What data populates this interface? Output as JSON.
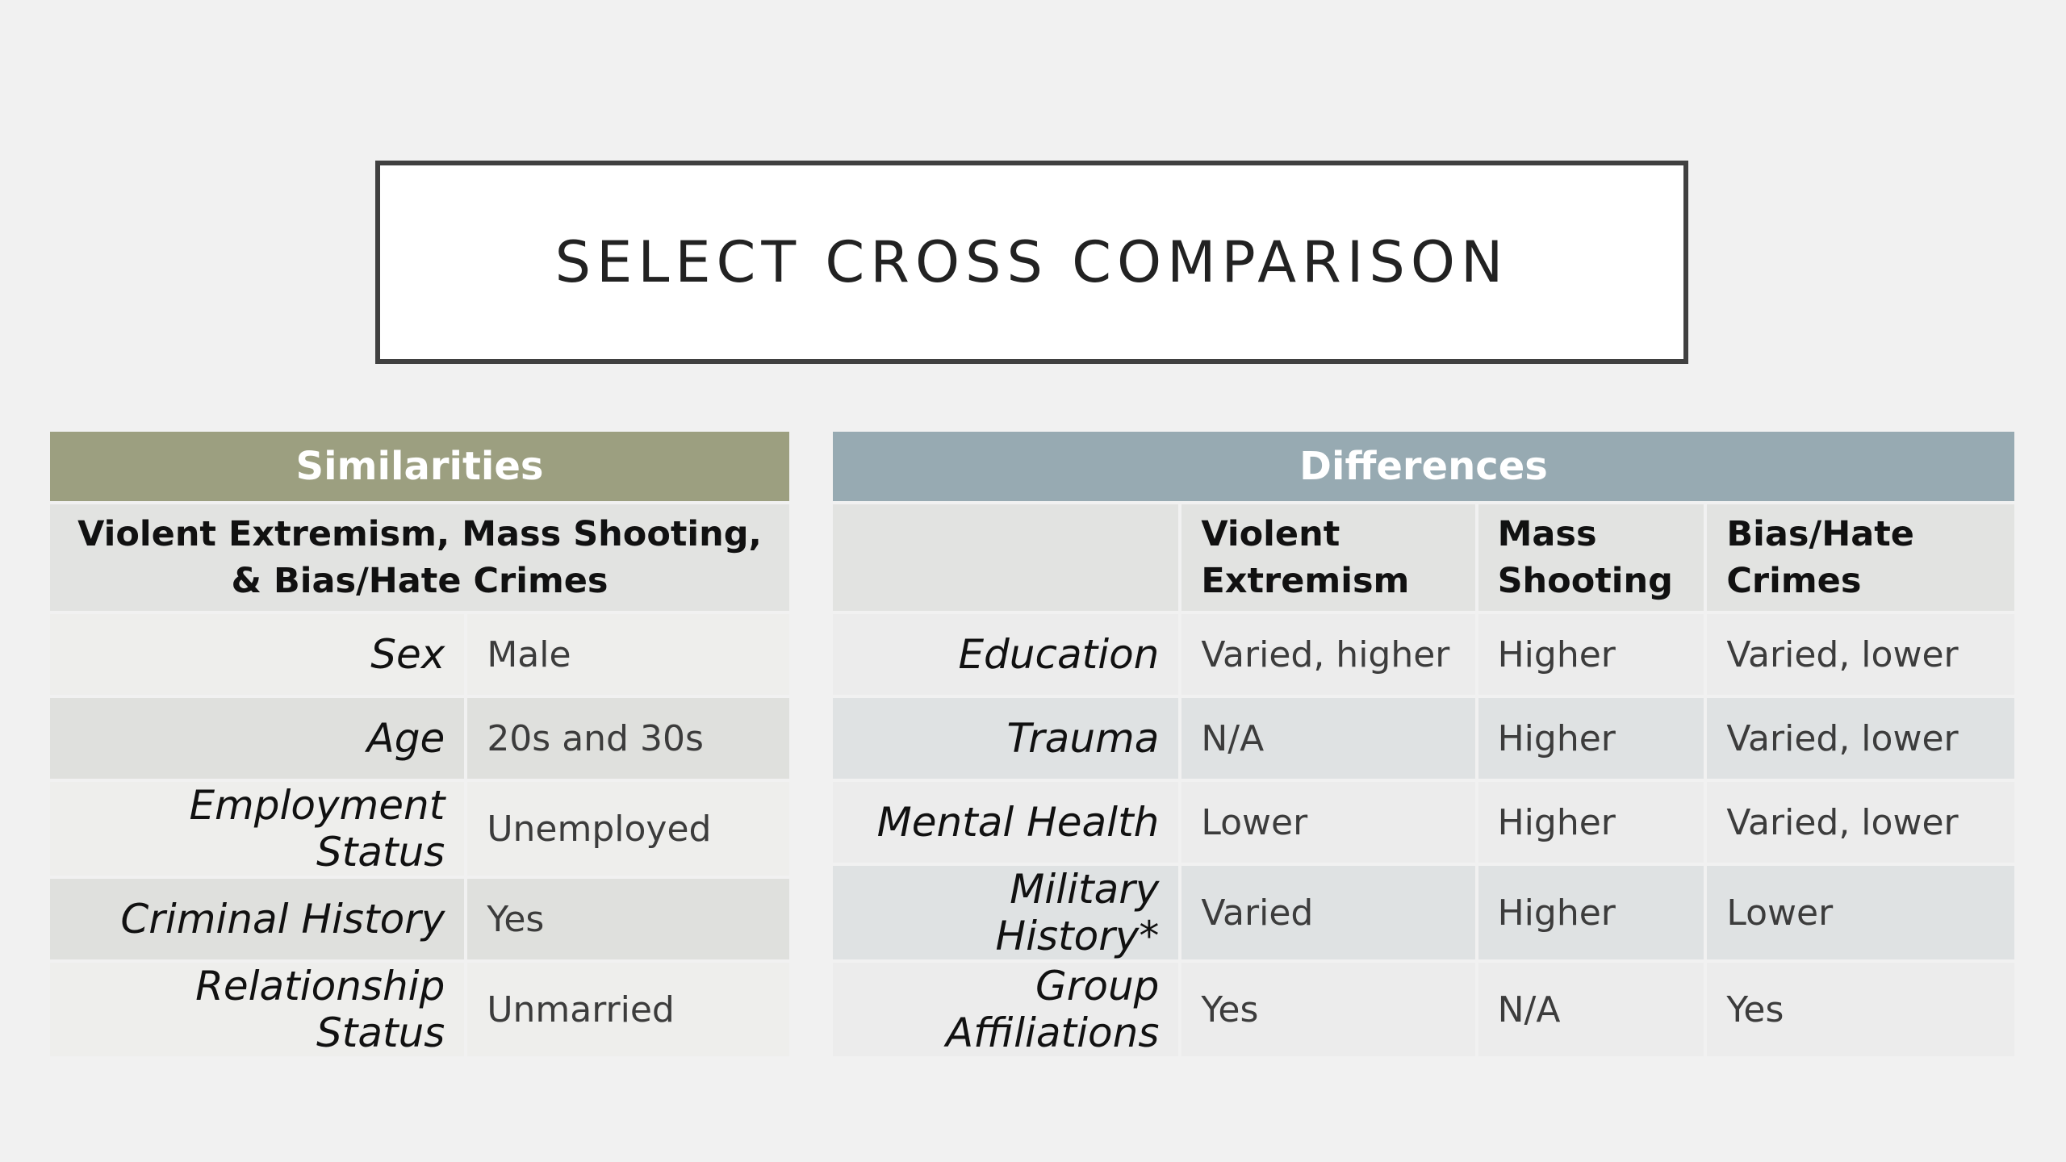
{
  "title": "SELECT CROSS COMPARISON",
  "similarities": {
    "header": "Similarities",
    "subheader": "Violent Extremism, Mass Shooting, & Bias/Hate Crimes",
    "rows": [
      {
        "label": "Sex",
        "value": "Male"
      },
      {
        "label": "Age",
        "value": "20s and 30s"
      },
      {
        "label": "Employment Status",
        "value": "Unemployed"
      },
      {
        "label": "Criminal History",
        "value": "Yes"
      },
      {
        "label": "Relationship Status",
        "value": "Unmarried"
      }
    ]
  },
  "differences": {
    "header": "Differences",
    "columns": [
      "Violent Extremism",
      "Mass Shooting",
      "Bias/Hate Crimes"
    ],
    "rows": [
      {
        "label": "Education",
        "values": [
          "Varied, higher",
          "Higher",
          "Varied, lower"
        ]
      },
      {
        "label": "Trauma",
        "values": [
          "N/A",
          "Higher",
          "Varied, lower"
        ]
      },
      {
        "label": "Mental Health",
        "values": [
          "Lower",
          "Higher",
          "Varied, lower"
        ]
      },
      {
        "label": "Military History*",
        "values": [
          "Varied",
          "Higher",
          "Lower"
        ]
      },
      {
        "label": "Group Affiliations",
        "values": [
          "Yes",
          "N/A",
          "Yes"
        ]
      }
    ]
  },
  "colors": {
    "similarities_header": "#9c9f80",
    "differences_header": "#97aab2",
    "title_border": "#404040"
  }
}
